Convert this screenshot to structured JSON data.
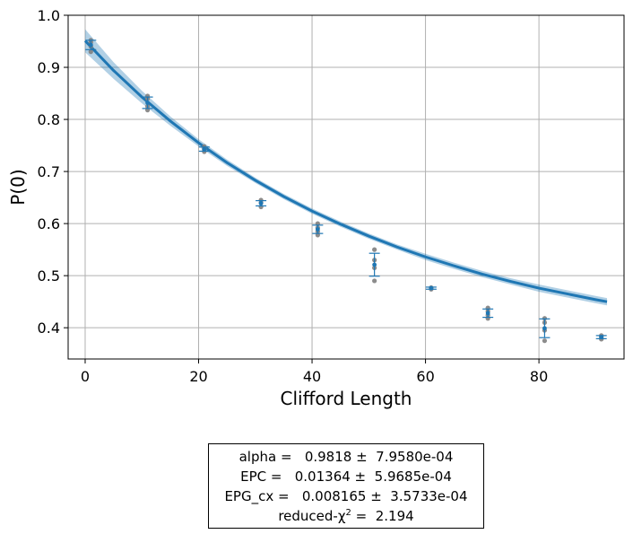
{
  "chart_data": {
    "type": "scatter",
    "title": "",
    "xlabel": "Clifford Length",
    "ylabel": "P(0)",
    "xlim": [
      -3,
      95
    ],
    "ylim": [
      0.34,
      1.0
    ],
    "xticks": [
      0,
      20,
      40,
      60,
      80
    ],
    "yticks": [
      0.4,
      0.5,
      0.6,
      0.7,
      0.8,
      0.9,
      1.0
    ],
    "ytick_labels": [
      "0.4",
      "0.5",
      "0.6",
      "0.7",
      "0.8",
      "0.9",
      "1.0"
    ],
    "grid": true,
    "colors": {
      "fit": "#1f77b4",
      "band": "#1f77b4",
      "raw": "#808080",
      "mean": "#1f77b4",
      "grid": "#b0b0b0"
    },
    "raw_points": [
      {
        "x": 1,
        "y": 0.93
      },
      {
        "x": 1,
        "y": 0.94
      },
      {
        "x": 1,
        "y": 0.948
      },
      {
        "x": 1,
        "y": 0.952
      },
      {
        "x": 11,
        "y": 0.818
      },
      {
        "x": 11,
        "y": 0.825
      },
      {
        "x": 11,
        "y": 0.84
      },
      {
        "x": 11,
        "y": 0.845
      },
      {
        "x": 21,
        "y": 0.738
      },
      {
        "x": 21,
        "y": 0.742
      },
      {
        "x": 21,
        "y": 0.745
      },
      {
        "x": 21,
        "y": 0.748
      },
      {
        "x": 31,
        "y": 0.632
      },
      {
        "x": 31,
        "y": 0.64
      },
      {
        "x": 31,
        "y": 0.645
      },
      {
        "x": 41,
        "y": 0.578
      },
      {
        "x": 41,
        "y": 0.585
      },
      {
        "x": 41,
        "y": 0.592
      },
      {
        "x": 41,
        "y": 0.6
      },
      {
        "x": 51,
        "y": 0.49
      },
      {
        "x": 51,
        "y": 0.515
      },
      {
        "x": 51,
        "y": 0.53
      },
      {
        "x": 51,
        "y": 0.55
      },
      {
        "x": 61,
        "y": 0.474
      },
      {
        "x": 61,
        "y": 0.477
      },
      {
        "x": 71,
        "y": 0.418
      },
      {
        "x": 71,
        "y": 0.424
      },
      {
        "x": 71,
        "y": 0.432
      },
      {
        "x": 71,
        "y": 0.438
      },
      {
        "x": 81,
        "y": 0.375
      },
      {
        "x": 81,
        "y": 0.395
      },
      {
        "x": 81,
        "y": 0.41
      },
      {
        "x": 81,
        "y": 0.418
      },
      {
        "x": 91,
        "y": 0.378
      },
      {
        "x": 91,
        "y": 0.382
      },
      {
        "x": 91,
        "y": 0.385
      }
    ],
    "mean_points": [
      {
        "x": 1,
        "y": 0.943,
        "err": 0.009
      },
      {
        "x": 11,
        "y": 0.832,
        "err": 0.011
      },
      {
        "x": 21,
        "y": 0.743,
        "err": 0.004
      },
      {
        "x": 31,
        "y": 0.639,
        "err": 0.005
      },
      {
        "x": 41,
        "y": 0.589,
        "err": 0.008
      },
      {
        "x": 51,
        "y": 0.521,
        "err": 0.022
      },
      {
        "x": 61,
        "y": 0.476,
        "err": 0.002
      },
      {
        "x": 71,
        "y": 0.428,
        "err": 0.008
      },
      {
        "x": 81,
        "y": 0.399,
        "err": 0.018
      },
      {
        "x": 91,
        "y": 0.382,
        "err": 0.003
      }
    ],
    "fit_curve": {
      "x": [
        0,
        5,
        10,
        15,
        20,
        25,
        30,
        35,
        40,
        45,
        50,
        55,
        60,
        65,
        70,
        75,
        80,
        85,
        90,
        92
      ],
      "y": [
        0.951,
        0.894,
        0.843,
        0.797,
        0.755,
        0.717,
        0.683,
        0.652,
        0.624,
        0.599,
        0.576,
        0.555,
        0.536,
        0.519,
        0.503,
        0.489,
        0.476,
        0.465,
        0.454,
        0.45
      ],
      "band_halfwidth": [
        0.022,
        0.016,
        0.012,
        0.009,
        0.007,
        0.006,
        0.005,
        0.005,
        0.005,
        0.005,
        0.005,
        0.005,
        0.006,
        0.006,
        0.006,
        0.006,
        0.007,
        0.007,
        0.007,
        0.007
      ]
    }
  },
  "fit_box": {
    "line1": "alpha =   0.9818 ±  7.9580e-04",
    "line2": "EPC =   0.01364 ±  5.9685e-04",
    "line3": "EPG_cx =   0.008165 ±  3.5733e-04",
    "line4_prefix": "reduced-χ",
    "line4_sup": "2",
    "line4_suffix": " =  2.194"
  }
}
